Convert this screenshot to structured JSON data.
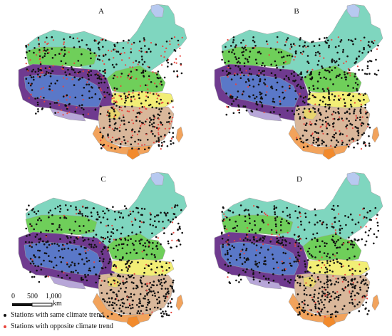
{
  "panels": [
    {
      "label": "A",
      "opposite_share": 0.34
    },
    {
      "label": "B",
      "opposite_share": 0.16
    },
    {
      "label": "C",
      "opposite_share": 0.1
    },
    {
      "label": "D",
      "opposite_share": 0.13
    }
  ],
  "scale_bar": {
    "tick_0": "0",
    "tick_1": "500",
    "tick_2": "1,000",
    "unit": "km"
  },
  "legend": {
    "same": {
      "label": "Stations with same climate trend",
      "color": "#111111"
    },
    "opposite": {
      "label": "Stations with opposite climate trend",
      "color": "#e8453c"
    }
  },
  "region_colors": {
    "northeast": "#7fd6bf",
    "xinjiang_basin": "#6fcf5a",
    "tibet_rim": "#6f3a8f",
    "tibet_plateau": "#5a78c8",
    "tibet_south": "#b7a6d8",
    "north_china": "#6fcf5a",
    "yangtze": "#f2ee76",
    "southeast": "#d9b79a",
    "south_coast": "#f2a35c",
    "sichuan": "#e8d56e",
    "taiwan": "#f2a35c",
    "hainan": "#f28a2c",
    "lake": "#b7c9f0"
  }
}
